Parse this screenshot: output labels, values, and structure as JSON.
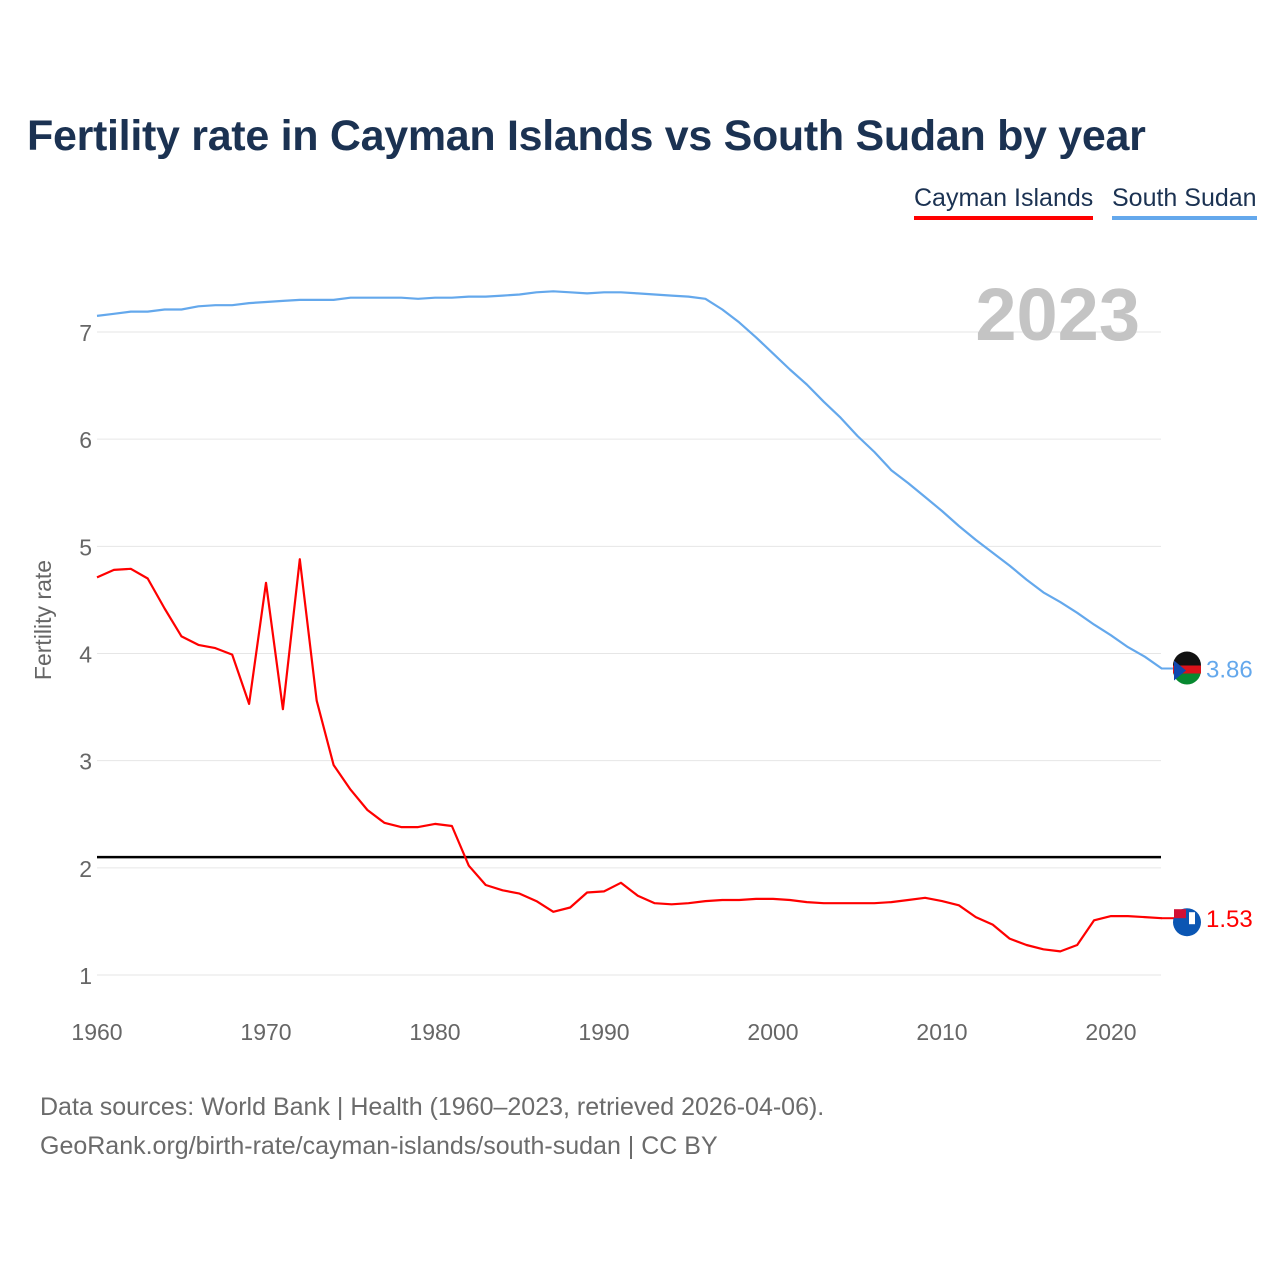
{
  "title": "Fertility rate in Cayman Islands vs South Sudan by year",
  "legend": [
    "Cayman Islands",
    "South Sudan"
  ],
  "year_label": "2023",
  "source_lines": [
    "Data sources: World Bank | Health (1960–2023, retrieved 2026-04-06).",
    "GeoRank.org/birth-rate/cayman-islands/south-sudan | CC BY"
  ],
  "chart_data": {
    "type": "line",
    "title": "Fertility rate in Cayman Islands vs South Sudan by year",
    "xlabel": "",
    "ylabel": "Fertility rate",
    "xlim": [
      1960,
      2023
    ],
    "ylim": [
      0.8,
      7.6
    ],
    "xticks": [
      1960,
      1970,
      1980,
      1990,
      2000,
      2010,
      2020
    ],
    "yticks": [
      1,
      2,
      3,
      4,
      5,
      6,
      7
    ],
    "grid": true,
    "legend_position": "top-right",
    "reference_line": {
      "y": 2.1,
      "color": "#000000"
    },
    "x": [
      1960,
      1961,
      1962,
      1963,
      1964,
      1965,
      1966,
      1967,
      1968,
      1969,
      1970,
      1971,
      1972,
      1973,
      1974,
      1975,
      1976,
      1977,
      1978,
      1979,
      1980,
      1981,
      1982,
      1983,
      1984,
      1985,
      1986,
      1987,
      1988,
      1989,
      1990,
      1991,
      1992,
      1993,
      1994,
      1995,
      1996,
      1997,
      1998,
      1999,
      2000,
      2001,
      2002,
      2003,
      2004,
      2005,
      2006,
      2007,
      2008,
      2009,
      2010,
      2011,
      2012,
      2013,
      2014,
      2015,
      2016,
      2017,
      2018,
      2019,
      2020,
      2021,
      2022,
      2023
    ],
    "series": [
      {
        "name": "Cayman Islands",
        "color": "#ff0000",
        "end_label": "1.53",
        "values": [
          4.71,
          4.78,
          4.79,
          4.7,
          4.42,
          4.16,
          4.08,
          4.05,
          3.99,
          3.53,
          4.66,
          3.48,
          4.88,
          3.56,
          2.96,
          2.73,
          2.54,
          2.42,
          2.38,
          2.38,
          2.41,
          2.39,
          2.02,
          1.84,
          1.79,
          1.76,
          1.69,
          1.59,
          1.63,
          1.77,
          1.78,
          1.86,
          1.74,
          1.67,
          1.66,
          1.67,
          1.69,
          1.7,
          1.7,
          1.71,
          1.71,
          1.7,
          1.68,
          1.67,
          1.67,
          1.67,
          1.67,
          1.68,
          1.7,
          1.72,
          1.69,
          1.65,
          1.54,
          1.47,
          1.34,
          1.28,
          1.24,
          1.22,
          1.28,
          1.51,
          1.55,
          1.55,
          1.54,
          1.53
        ]
      },
      {
        "name": "South Sudan",
        "color": "#64a8ec",
        "end_label": "3.86",
        "values": [
          7.15,
          7.17,
          7.19,
          7.19,
          7.21,
          7.21,
          7.24,
          7.25,
          7.25,
          7.27,
          7.28,
          7.29,
          7.3,
          7.3,
          7.3,
          7.32,
          7.32,
          7.32,
          7.32,
          7.31,
          7.32,
          7.32,
          7.33,
          7.33,
          7.34,
          7.35,
          7.37,
          7.38,
          7.37,
          7.36,
          7.37,
          7.37,
          7.36,
          7.35,
          7.34,
          7.33,
          7.31,
          7.21,
          7.09,
          6.95,
          6.8,
          6.65,
          6.51,
          6.35,
          6.2,
          6.03,
          5.88,
          5.71,
          5.59,
          5.46,
          5.33,
          5.19,
          5.06,
          4.94,
          4.82,
          4.69,
          4.57,
          4.48,
          4.38,
          4.27,
          4.17,
          4.06,
          3.97,
          3.86
        ]
      }
    ]
  }
}
